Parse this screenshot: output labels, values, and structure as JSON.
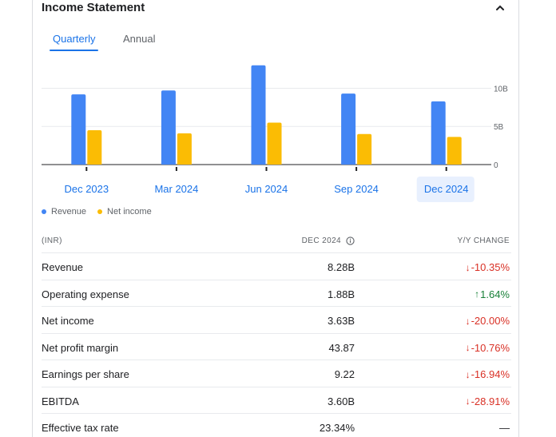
{
  "header": {
    "title": "Income Statement",
    "collapse_icon": "chevron-up-icon"
  },
  "tabs": [
    {
      "label": "Quarterly",
      "active": true
    },
    {
      "label": "Annual",
      "active": false
    }
  ],
  "colors": {
    "revenue": "#4285f4",
    "net_income": "#fbbc04",
    "accent": "#1a73e8",
    "negative": "#d93025",
    "positive": "#188038"
  },
  "chart_data": {
    "type": "bar",
    "categories": [
      "Dec 2023",
      "Mar 2024",
      "Jun 2024",
      "Sep 2024",
      "Dec 2024"
    ],
    "selected_category": "Dec 2024",
    "series": [
      {
        "name": "Revenue",
        "values": [
          9.2,
          9.7,
          13.0,
          9.3,
          8.28
        ]
      },
      {
        "name": "Net income",
        "values": [
          4.5,
          4.1,
          5.5,
          4.0,
          3.63
        ]
      }
    ],
    "yticks": [
      {
        "value": 0,
        "label": "0"
      },
      {
        "value": 5,
        "label": "5B"
      },
      {
        "value": 10,
        "label": "10B"
      }
    ],
    "ylim": [
      0,
      13.5
    ],
    "grid": true,
    "legend_position": "bottom-left"
  },
  "legend": [
    {
      "label": "Revenue"
    },
    {
      "label": "Net income"
    }
  ],
  "table": {
    "col_metric": "(INR)",
    "col_period": "DEC 2024",
    "col_change": "Y/Y CHANGE",
    "rows": [
      {
        "label": "Revenue",
        "value": "8.28B",
        "change": "-10.35%",
        "direction": "down"
      },
      {
        "label": "Operating expense",
        "value": "1.88B",
        "change": "1.64%",
        "direction": "up"
      },
      {
        "label": "Net income",
        "value": "3.63B",
        "change": "-20.00%",
        "direction": "down"
      },
      {
        "label": "Net profit margin",
        "value": "43.87",
        "change": "-10.76%",
        "direction": "down"
      },
      {
        "label": "Earnings per share",
        "value": "9.22",
        "change": "-16.94%",
        "direction": "down"
      },
      {
        "label": "EBITDA",
        "value": "3.60B",
        "change": "-28.91%",
        "direction": "down"
      },
      {
        "label": "Effective tax rate",
        "value": "23.34%",
        "change": "—",
        "direction": "none"
      }
    ]
  }
}
